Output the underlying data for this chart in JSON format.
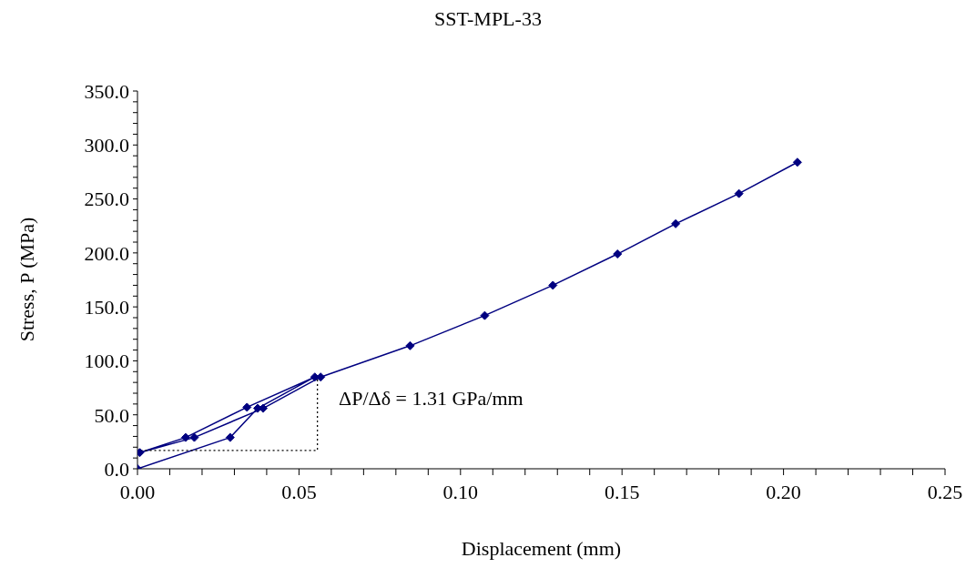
{
  "chart_data": {
    "type": "line",
    "title": "SST-MPL-33",
    "xlabel": "Displacement (mm)",
    "ylabel": "Stress, P (MPa)",
    "xlim": [
      0,
      0.25
    ],
    "ylim": [
      0,
      350
    ],
    "xticks": [
      {
        "value": 0,
        "label": "0.00"
      },
      {
        "value": 0.01,
        "label": null
      },
      {
        "value": 0.02,
        "label": null
      },
      {
        "value": 0.03,
        "label": null
      },
      {
        "value": 0.04,
        "label": null
      },
      {
        "value": 0.05,
        "label": "0.05"
      },
      {
        "value": 0.06,
        "label": null
      },
      {
        "value": 0.07,
        "label": null
      },
      {
        "value": 0.08,
        "label": null
      },
      {
        "value": 0.09,
        "label": null
      },
      {
        "value": 0.1,
        "label": "0.10"
      },
      {
        "value": 0.11,
        "label": null
      },
      {
        "value": 0.12,
        "label": null
      },
      {
        "value": 0.13,
        "label": null
      },
      {
        "value": 0.14,
        "label": null
      },
      {
        "value": 0.15,
        "label": "0.15"
      },
      {
        "value": 0.16,
        "label": null
      },
      {
        "value": 0.17,
        "label": null
      },
      {
        "value": 0.18,
        "label": null
      },
      {
        "value": 0.19,
        "label": null
      },
      {
        "value": 0.2,
        "label": "0.20"
      },
      {
        "value": 0.21,
        "label": null
      },
      {
        "value": 0.22,
        "label": null
      },
      {
        "value": 0.23,
        "label": null
      },
      {
        "value": 0.24,
        "label": null
      },
      {
        "value": 0.25,
        "label": "0.25"
      }
    ],
    "yticks": [
      {
        "value": 0,
        "label": "0.0"
      },
      {
        "value": 10,
        "label": null
      },
      {
        "value": 20,
        "label": null
      },
      {
        "value": 30,
        "label": null
      },
      {
        "value": 40,
        "label": null
      },
      {
        "value": 50,
        "label": "50.0"
      },
      {
        "value": 60,
        "label": null
      },
      {
        "value": 70,
        "label": null
      },
      {
        "value": 80,
        "label": null
      },
      {
        "value": 90,
        "label": null
      },
      {
        "value": 100,
        "label": "100.0"
      },
      {
        "value": 110,
        "label": null
      },
      {
        "value": 120,
        "label": null
      },
      {
        "value": 130,
        "label": null
      },
      {
        "value": 140,
        "label": null
      },
      {
        "value": 150,
        "label": "150.0"
      },
      {
        "value": 160,
        "label": null
      },
      {
        "value": 170,
        "label": null
      },
      {
        "value": 180,
        "label": null
      },
      {
        "value": 190,
        "label": null
      },
      {
        "value": 200,
        "label": "200.0"
      },
      {
        "value": 210,
        "label": null
      },
      {
        "value": 220,
        "label": null
      },
      {
        "value": 230,
        "label": null
      },
      {
        "value": 240,
        "label": null
      },
      {
        "value": 250,
        "label": "250.0"
      },
      {
        "value": 260,
        "label": null
      },
      {
        "value": 270,
        "label": null
      },
      {
        "value": 280,
        "label": null
      },
      {
        "value": 290,
        "label": null
      },
      {
        "value": 300,
        "label": "300.0"
      },
      {
        "value": 310,
        "label": null
      },
      {
        "value": 320,
        "label": null
      },
      {
        "value": 330,
        "label": null
      },
      {
        "value": 340,
        "label": null
      },
      {
        "value": 350,
        "label": "350.0"
      }
    ],
    "grid": false,
    "annotations": [
      "ΔP/Δδ = 1.31 GPa/mm"
    ],
    "series": [
      {
        "color": "#000080",
        "marker": "diamond",
        "line_style": "solid",
        "x": [
          0,
          0.0287,
          0.0372,
          0.0549,
          0.0339,
          0.0149,
          0.0007,
          0.0176,
          0.0389,
          0.0567,
          0.0844,
          0.1075,
          0.1286,
          0.1486,
          0.1666,
          0.1862,
          0.2043
        ],
        "values": [
          0,
          29,
          56,
          85,
          57,
          29,
          15,
          29,
          56,
          85,
          114,
          142,
          170,
          199,
          227,
          255,
          284
        ]
      },
      {
        "color": "#000000",
        "marker": "none",
        "line_style": "dotted",
        "x": [
          0.001,
          0.0557,
          0.0557
        ],
        "values": [
          17,
          17,
          84
        ]
      }
    ]
  }
}
